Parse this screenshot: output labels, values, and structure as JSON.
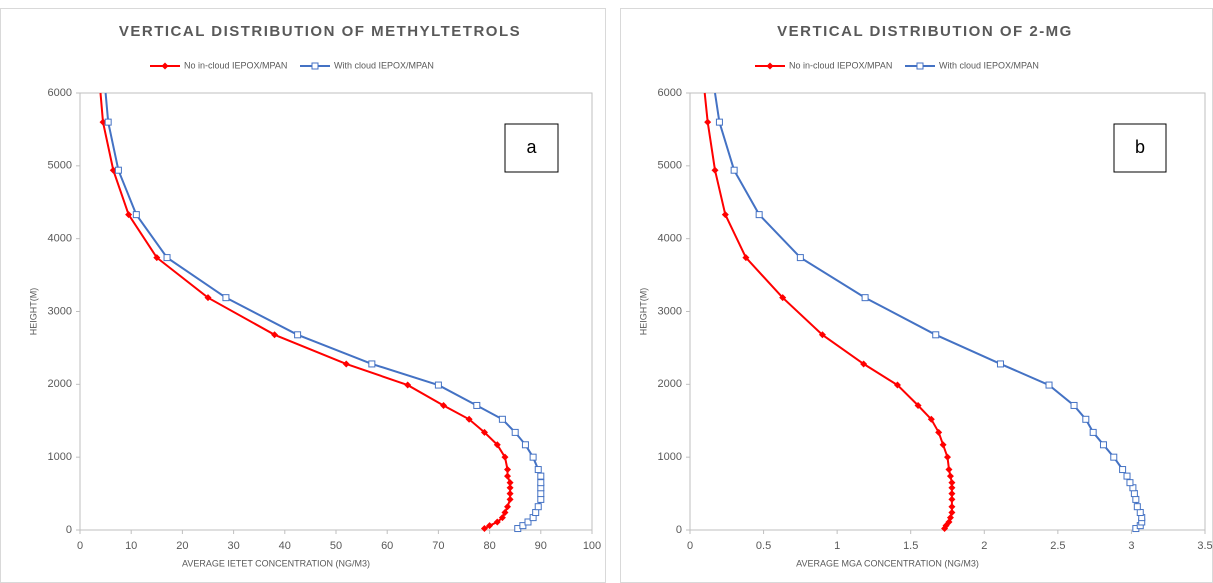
{
  "chart_data": [
    {
      "type": "line",
      "title": "VERTICAL DISTRIBUTION OF METHYLTETROLS",
      "x_label": "AVERAGE IETET CONCENTRATION (NG/M3)",
      "y_label": "HEIGHT(M)",
      "annotation": "a",
      "xlim": [
        0,
        100
      ],
      "xticks": [
        0,
        10,
        20,
        30,
        40,
        50,
        60,
        70,
        80,
        90,
        100
      ],
      "ylim": [
        0,
        6000
      ],
      "yticks": [
        0,
        1000,
        2000,
        3000,
        4000,
        5000,
        6000
      ],
      "heights": [
        20,
        60,
        110,
        170,
        240,
        320,
        420,
        500,
        580,
        650,
        740,
        830,
        1000,
        1170,
        1340,
        1520,
        1710,
        1990,
        2280,
        2680,
        3190,
        3740,
        4330,
        4940,
        5600,
        6000
      ],
      "series": [
        {
          "name": "No in-cloud IEPOX/MPAN",
          "color": "#ff0000",
          "marker": "diamond",
          "values": [
            79,
            80,
            81.5,
            82.5,
            83,
            83.5,
            84,
            84,
            84,
            84,
            83.5,
            83.5,
            83,
            81.5,
            79,
            76,
            71,
            64,
            52,
            38,
            25,
            15,
            9.5,
            6.5,
            4.5,
            4
          ]
        },
        {
          "name": "With cloud IEPOX/MPAN",
          "color": "#4472c4",
          "marker": "square",
          "values": [
            85.5,
            86.5,
            87.5,
            88.5,
            89,
            89.5,
            90,
            90,
            90,
            90,
            90,
            89.5,
            88.5,
            87,
            85,
            82.5,
            77.5,
            70,
            57,
            42.5,
            28.5,
            17,
            11,
            7.5,
            5.5,
            5
          ]
        }
      ]
    },
    {
      "type": "line",
      "title": "VERTICAL DISTRIBUTION OF 2-MG",
      "x_label": "AVERAGE MGA CONCENTRATION (NG/M3)",
      "y_label": "HEIGHT(M)",
      "annotation": "b",
      "xlim": [
        0,
        3.5
      ],
      "xticks": [
        0,
        0.5,
        1,
        1.5,
        2,
        2.5,
        3,
        3.5
      ],
      "ylim": [
        0,
        6000
      ],
      "yticks": [
        0,
        1000,
        2000,
        3000,
        4000,
        5000,
        6000
      ],
      "heights": [
        20,
        60,
        110,
        170,
        240,
        320,
        420,
        500,
        580,
        650,
        740,
        830,
        1000,
        1170,
        1340,
        1520,
        1710,
        1990,
        2280,
        2680,
        3190,
        3740,
        4330,
        4940,
        5600,
        6000
      ],
      "series": [
        {
          "name": "No in-cloud IEPOX/MPAN",
          "color": "#ff0000",
          "marker": "diamond",
          "values": [
            1.73,
            1.74,
            1.76,
            1.77,
            1.78,
            1.78,
            1.78,
            1.78,
            1.78,
            1.78,
            1.77,
            1.76,
            1.75,
            1.72,
            1.69,
            1.64,
            1.55,
            1.41,
            1.18,
            0.9,
            0.63,
            0.38,
            0.24,
            0.17,
            0.12,
            0.1
          ]
        },
        {
          "name": "With cloud IEPOX/MPAN",
          "color": "#4472c4",
          "marker": "square",
          "values": [
            3.03,
            3.06,
            3.07,
            3.07,
            3.06,
            3.04,
            3.03,
            3.02,
            3.01,
            2.99,
            2.97,
            2.94,
            2.88,
            2.81,
            2.74,
            2.69,
            2.61,
            2.44,
            2.11,
            1.67,
            1.19,
            0.75,
            0.47,
            0.3,
            0.2,
            0.17
          ]
        }
      ]
    }
  ]
}
